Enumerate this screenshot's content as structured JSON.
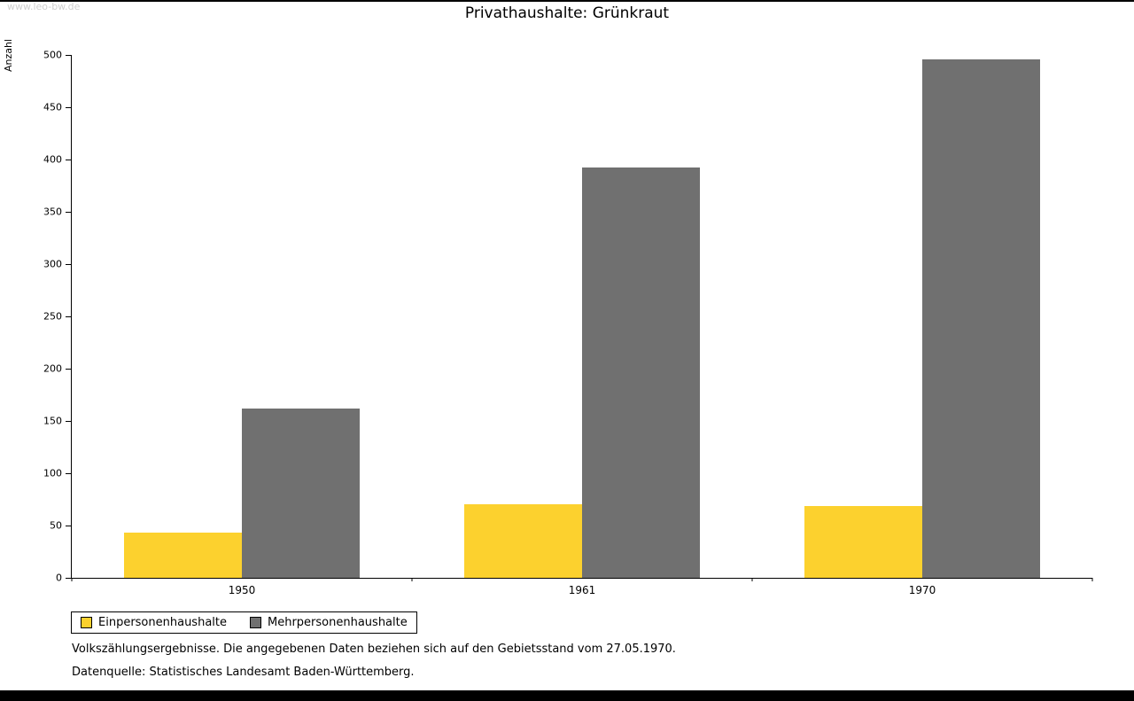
{
  "watermark": "www.leo-bw.de",
  "title": "Privathaushalte: Grünkraut",
  "chart_data": {
    "type": "bar",
    "title": "Privathaushalte: Grünkraut",
    "categories": [
      "1950",
      "1961",
      "1970"
    ],
    "series": [
      {
        "name": "Einpersonenhaushalte",
        "color": "#fcd12e",
        "values": [
          43,
          70,
          69
        ]
      },
      {
        "name": "Mehrpersonenhaushalte",
        "color": "#707070",
        "values": [
          162,
          392,
          496
        ]
      }
    ],
    "xlabel": "",
    "ylabel": "Anzahl",
    "ylim": [
      0,
      500
    ],
    "ytick_step": 50,
    "grid": false,
    "legend_position": "bottom-left"
  },
  "footnotes": [
    "Volkszählungsergebnisse. Die angegebenen Daten beziehen sich auf den Gebietsstand vom 27.05.1970.",
    "Datenquelle: Statistisches Landesamt Baden-Württemberg."
  ]
}
